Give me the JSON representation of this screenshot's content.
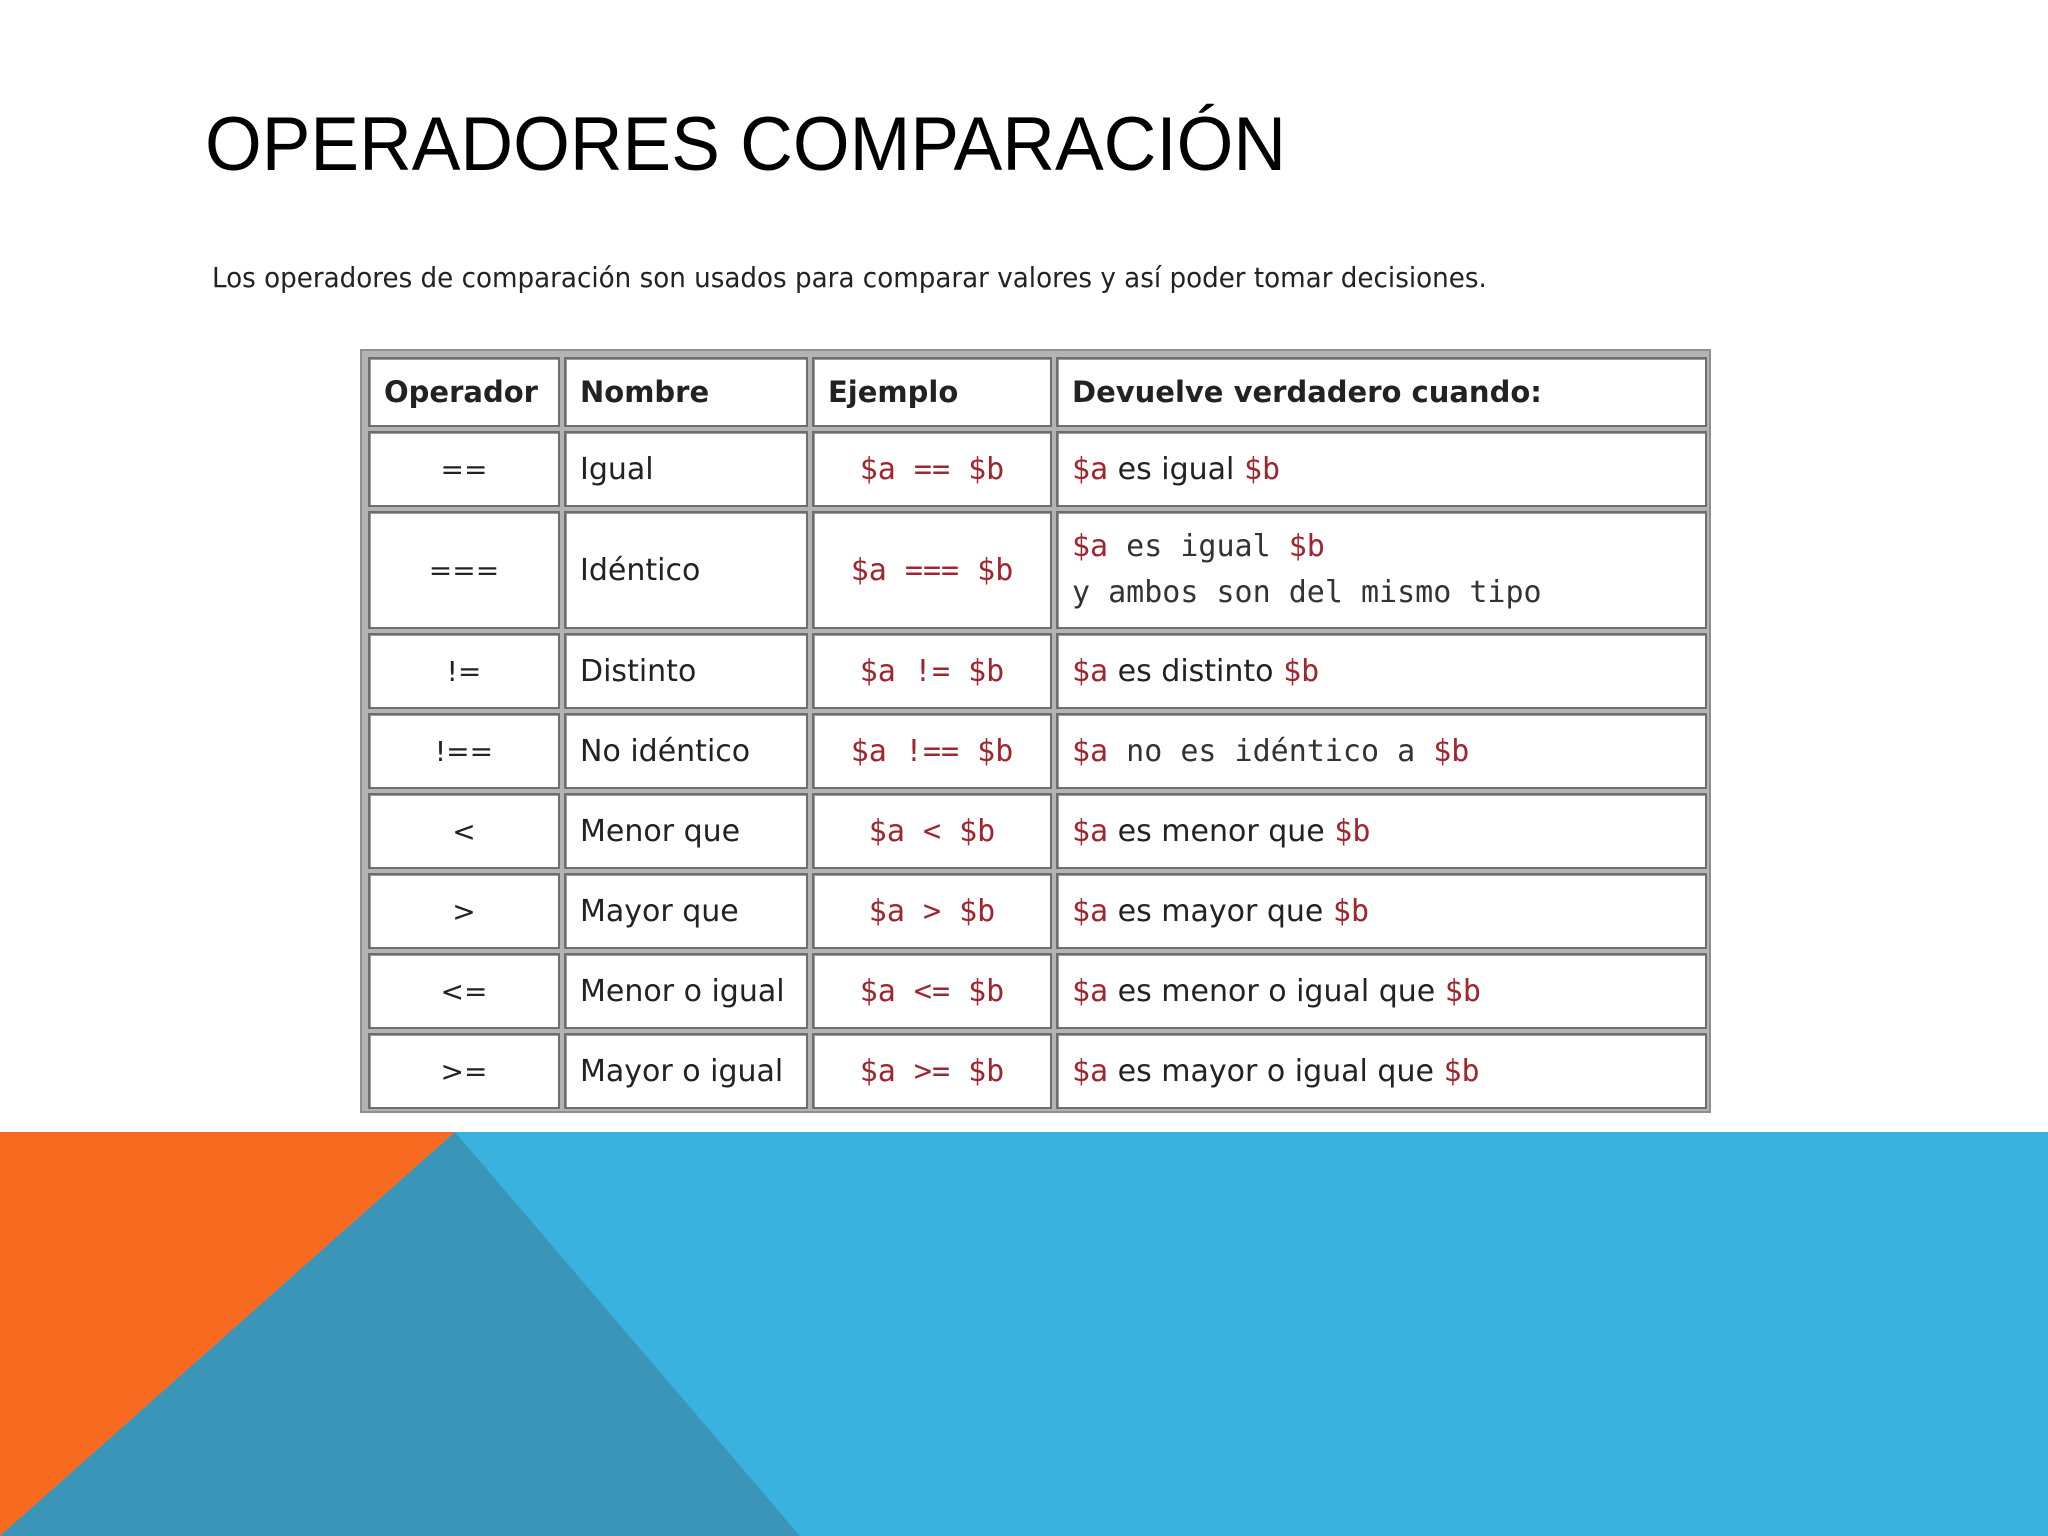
{
  "slide": {
    "title": "OPERADORES COMPARACIÓN",
    "intro": "Los operadores de comparación son usados para comparar valores y así poder tomar decisiones."
  },
  "table": {
    "headers": [
      "Operador",
      "Nombre",
      "Ejemplo",
      "Devuelve verdadero cuando:"
    ],
    "rows": [
      {
        "operator": "==",
        "name": "Igual",
        "example": "$a == $b",
        "result": {
          "a": "$a",
          "text": " es igual ",
          "b": "$b"
        }
      },
      {
        "operator": "===",
        "name": "Idéntico",
        "example": "$a === $b",
        "result": {
          "a": "$a",
          "text": " es igual ",
          "b": "$b",
          "line2": "y ambos son del mismo tipo"
        }
      },
      {
        "operator": "!=",
        "name": "Distinto",
        "example": "$a != $b",
        "result": {
          "a": "$a",
          "text": " es distinto ",
          "b": "$b"
        }
      },
      {
        "operator": "!==",
        "name": "No idéntico",
        "example": "$a !== $b",
        "result": {
          "a": "$a",
          "text": " no es idéntico a ",
          "b": "$b"
        }
      },
      {
        "operator": "<",
        "name": "Menor que",
        "example": "$a < $b",
        "result": {
          "a": "$a",
          "text": " es menor que ",
          "b": "$b"
        }
      },
      {
        "operator": ">",
        "name": "Mayor que",
        "example": "$a > $b",
        "result": {
          "a": "$a",
          "text": " es mayor que ",
          "b": "$b"
        }
      },
      {
        "operator": "<=",
        "name": "Menor o igual",
        "example": "$a <= $b",
        "result": {
          "a": "$a",
          "text": " es menor o igual que ",
          "b": "$b"
        }
      },
      {
        "operator": ">=",
        "name": "Mayor o igual",
        "example": "$a >= $b",
        "result": {
          "a": "$a",
          "text": " es mayor o igual que ",
          "b": "$b"
        }
      }
    ]
  },
  "colors": {
    "orange": "#f96a21",
    "blue_light": "#3ab2e0",
    "blue_dark": "#3b95b8",
    "code_red": "#a0252f"
  }
}
